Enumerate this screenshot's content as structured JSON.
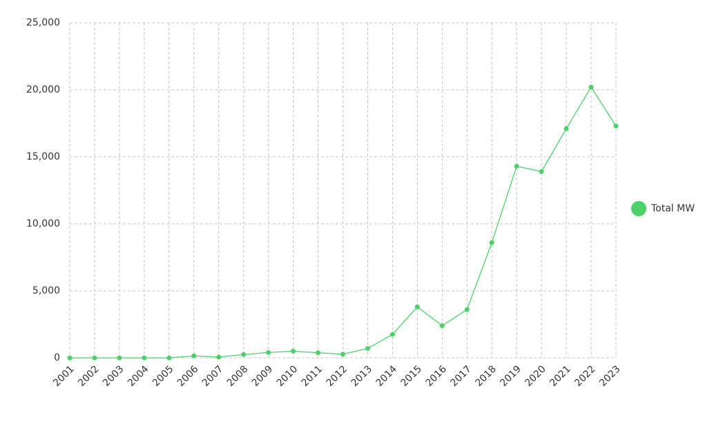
{
  "chart_data": {
    "type": "line",
    "categories": [
      "2001",
      "2002",
      "2003",
      "2004",
      "2005",
      "2006",
      "2007",
      "2008",
      "2009",
      "2010",
      "2011",
      "2012",
      "2013",
      "2014",
      "2015",
      "2016",
      "2017",
      "2018",
      "2019",
      "2020",
      "2021",
      "2022",
      "2023"
    ],
    "series": [
      {
        "name": "Total MW",
        "color": "#4cd16b",
        "values": [
          0,
          0,
          0,
          0,
          0,
          150,
          50,
          250,
          400,
          500,
          380,
          270,
          700,
          1750,
          3800,
          2400,
          3600,
          8600,
          14300,
          13900,
          17100,
          20200,
          17300
        ]
      }
    ],
    "ylim": [
      0,
      25000
    ],
    "yticks": [
      0,
      {
        "value": 5000,
        "label": "5,000"
      },
      {
        "value": 10000,
        "label": "10,000"
      },
      {
        "value": 15000,
        "label": "15,000"
      },
      {
        "value": 20000,
        "label": "20,000"
      },
      {
        "value": 25000,
        "label": "25,000"
      }
    ],
    "grid": true,
    "legend": "right"
  }
}
